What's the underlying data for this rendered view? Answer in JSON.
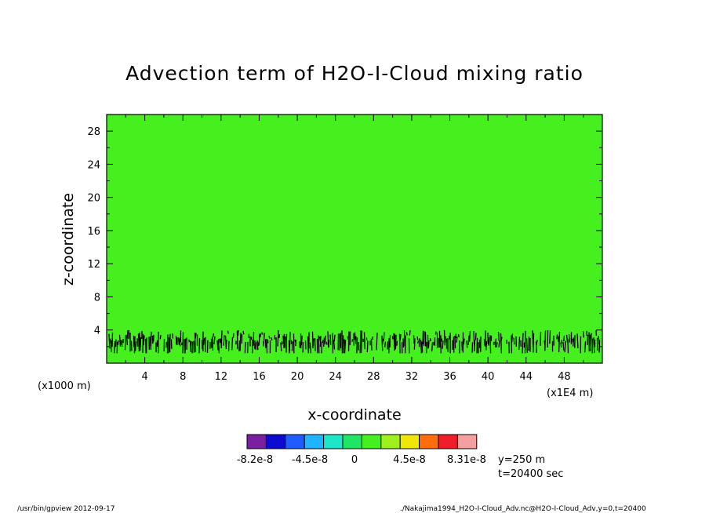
{
  "chart_data": {
    "type": "heatmap",
    "title": "Advection term of H2O-I-Cloud mixing ratio",
    "xlabel": "x-coordinate",
    "ylabel": "z-coordinate",
    "x_unit": "(x1000 m)",
    "x_unit_right": "(x1E4 m)",
    "xlim": [
      0,
      52
    ],
    "ylim": [
      0,
      30
    ],
    "xticks": [
      "4",
      "8",
      "12",
      "16",
      "20",
      "24",
      "28",
      "32",
      "36",
      "40",
      "44",
      "48"
    ],
    "yticks": [
      "4",
      "8",
      "12",
      "16",
      "20",
      "24",
      "28"
    ],
    "field_value_background": 0,
    "noisy_band_z_range": [
      1.2,
      4.0
    ],
    "colorbar": {
      "colors": [
        "#7a1fa2",
        "#0a0ad0",
        "#1e5cff",
        "#1eb4ff",
        "#1ee6c8",
        "#1ee664",
        "#46f01e",
        "#a0f01e",
        "#f0e60a",
        "#ff6e0a",
        "#f01e2a",
        "#f5a0a0"
      ],
      "labels": [
        "-8.2e-8",
        "-4.5e-8",
        "0",
        "4.5e-8",
        "8.31e-8"
      ]
    },
    "annotations": [
      "y=250 m",
      "t=20400 sec"
    ],
    "plot_background_color": "#46f01e",
    "contour_color": "#000000"
  },
  "footer": {
    "left": "/usr/bin/gpview   2012-09-17",
    "right": "./Nakajima1994_H2O-I-Cloud_Adv.nc@H2O-I-Cloud_Adv,y=0,t=20400"
  }
}
